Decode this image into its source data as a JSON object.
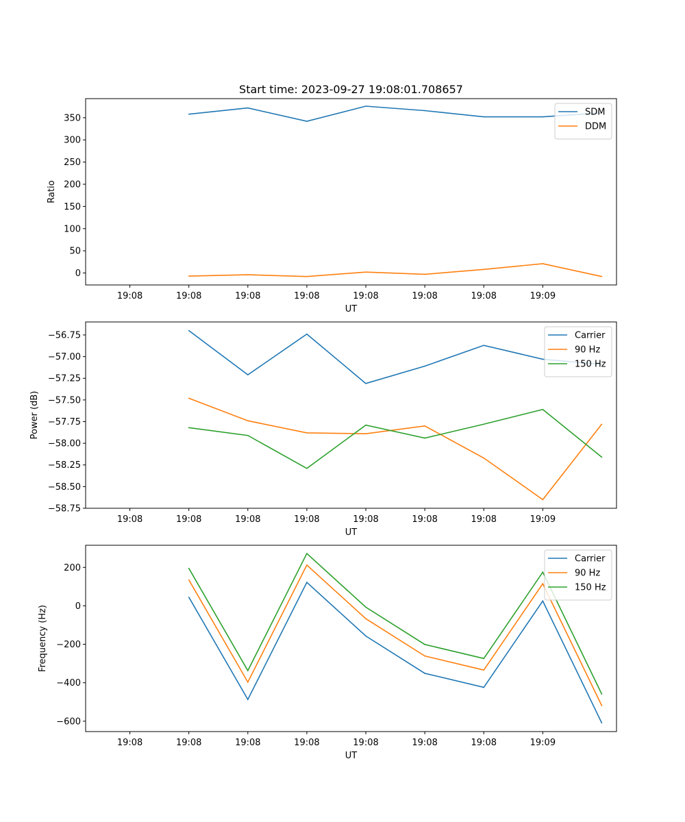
{
  "chart_data": [
    {
      "type": "line",
      "title": "Start time: 2023-09-27 19:08:01.708657",
      "xlabel": "UT",
      "ylabel": "Ratio",
      "x_tick_labels": [
        "19:08",
        "19:08",
        "19:08",
        "19:08",
        "19:08",
        "19:08",
        "19:08",
        "19:09"
      ],
      "x": [
        1,
        2,
        3,
        4,
        5,
        6,
        7,
        8
      ],
      "xlim": [
        -0.75,
        8.25
      ],
      "ylim": [
        -27,
        393
      ],
      "yticks": [
        0,
        50,
        100,
        150,
        200,
        250,
        300,
        350
      ],
      "legend": "top-right",
      "series": [
        {
          "name": "SDM",
          "color": "#1f77b4",
          "values": [
            358,
            372,
            342,
            376,
            366,
            352,
            352,
            361
          ]
        },
        {
          "name": "DDM",
          "color": "#ff7f0e",
          "values": [
            -7,
            -4,
            -8,
            2,
            -3,
            8,
            21,
            -8
          ]
        }
      ]
    },
    {
      "type": "line",
      "title": "",
      "xlabel": "UT",
      "ylabel": "Power (dB)",
      "x_tick_labels": [
        "19:08",
        "19:08",
        "19:08",
        "19:08",
        "19:08",
        "19:08",
        "19:08",
        "19:09"
      ],
      "x": [
        1,
        2,
        3,
        4,
        5,
        6,
        7,
        8
      ],
      "xlim": [
        -0.75,
        8.25
      ],
      "ylim": [
        -58.75,
        -56.6
      ],
      "yticks": [
        -58.75,
        -58.5,
        -58.25,
        -58.0,
        -57.75,
        -57.5,
        -57.25,
        -57.0,
        -56.75
      ],
      "ytick_labels": [
        "−58.75",
        "−58.50",
        "−58.25",
        "−58.00",
        "−57.75",
        "−57.50",
        "−57.25",
        "−57.00",
        "−56.75"
      ],
      "legend": "top-right",
      "series": [
        {
          "name": "Carrier",
          "color": "#1f77b4",
          "values": [
            -56.7,
            -57.21,
            -56.74,
            -57.31,
            -57.11,
            -56.87,
            -57.03,
            -57.09
          ]
        },
        {
          "name": "90 Hz",
          "color": "#ff7f0e",
          "values": [
            -57.48,
            -57.74,
            -57.88,
            -57.89,
            -57.8,
            -58.17,
            -58.65,
            -57.78
          ]
        },
        {
          "name": "150 Hz",
          "color": "#2ca02c",
          "values": [
            -57.82,
            -57.91,
            -58.29,
            -57.79,
            -57.94,
            -57.78,
            -57.61,
            -58.16
          ]
        }
      ]
    },
    {
      "type": "line",
      "title": "",
      "xlabel": "UT",
      "ylabel": "Frequency (Hz)",
      "x_tick_labels": [
        "19:08",
        "19:08",
        "19:08",
        "19:08",
        "19:08",
        "19:08",
        "19:08",
        "19:09"
      ],
      "x": [
        1,
        2,
        3,
        4,
        5,
        6,
        7,
        8
      ],
      "xlim": [
        -0.75,
        8.25
      ],
      "ylim": [
        -654,
        315
      ],
      "yticks": [
        -600,
        -400,
        -200,
        0,
        200
      ],
      "ytick_labels": [
        "−600",
        "−400",
        "−200",
        "0",
        "200"
      ],
      "legend": "top-right",
      "series": [
        {
          "name": "Carrier",
          "color": "#1f77b4",
          "values": [
            45,
            -487,
            122,
            -157,
            -351,
            -424,
            25,
            -609
          ]
        },
        {
          "name": "90 Hz",
          "color": "#ff7f0e",
          "values": [
            135,
            -397,
            212,
            -67,
            -261,
            -334,
            115,
            -519
          ]
        },
        {
          "name": "150 Hz",
          "color": "#2ca02c",
          "values": [
            195,
            -337,
            272,
            -7,
            -201,
            -274,
            175,
            -459
          ]
        }
      ]
    }
  ]
}
